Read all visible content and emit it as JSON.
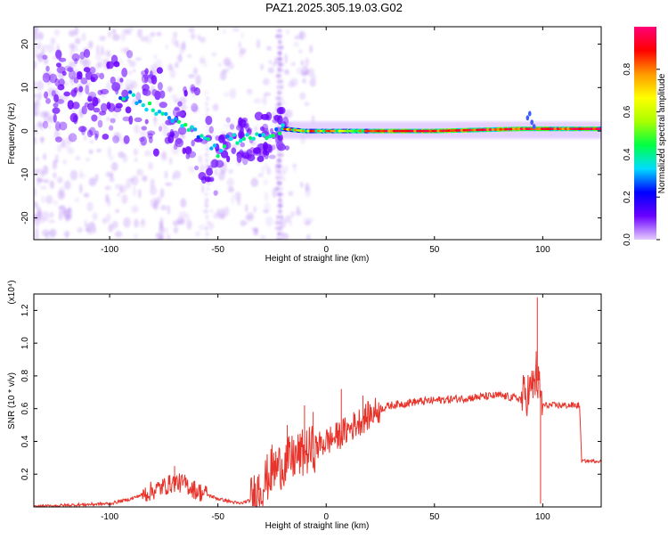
{
  "page": {
    "title": "PAZ1.2025.305.19.03.G02"
  },
  "chart_data": [
    {
      "type": "heatmap",
      "id": "spectrogram",
      "xlabel": "Height of straight line (km)",
      "ylabel": "Frequency (Hz)",
      "xlim": [
        -135,
        127
      ],
      "ylim": [
        -25,
        24
      ],
      "xticks": [
        -100,
        -50,
        0,
        50,
        100
      ],
      "xtick_labels": [
        "-100",
        "-50",
        "0",
        "50",
        "100"
      ],
      "yticks": [
        -20,
        -10,
        0,
        10,
        20
      ],
      "ytick_labels": [
        "-20",
        "-10",
        "0",
        "10",
        "20"
      ],
      "grid": false,
      "ridge": {
        "description": "dominant frequency ridge",
        "x": [
          -100,
          -90,
          -80,
          -70,
          -60,
          -50,
          -45,
          -40,
          -30,
          -25,
          -20,
          -10,
          0,
          20,
          50,
          90,
          95,
          100,
          127
        ],
        "y": [
          8,
          8,
          5,
          3,
          0,
          -5,
          -1.5,
          -2,
          -1.5,
          -1,
          0.5,
          0,
          0,
          0,
          0,
          0.5,
          0.5,
          0.5,
          0.5
        ]
      },
      "colorbar": {
        "label": "Normalized spectral amplitude",
        "ticks": [
          0.0,
          0.2,
          0.4,
          0.6,
          0.8
        ],
        "tick_labels": [
          "0.0",
          "0.2",
          "0.4",
          "0.6",
          "0.8"
        ],
        "range": [
          0,
          1
        ],
        "colors": [
          "#e6ccff",
          "#6a00ff",
          "#0000ff",
          "#00ddff",
          "#00ff44",
          "#aaff00",
          "#ffff00",
          "#ff9900",
          "#ff0000",
          "#ff0077"
        ]
      }
    },
    {
      "type": "line",
      "id": "snr",
      "xlabel": "Height of straight line (km)",
      "ylabel": "SNR (10 * v/v)",
      "y_multiplier_label": "(x10⁴)",
      "xlim": [
        -135,
        127
      ],
      "ylim": [
        0,
        1.3
      ],
      "xticks": [
        -100,
        -50,
        0,
        50,
        100
      ],
      "xtick_labels": [
        "-100",
        "-50",
        "0",
        "50",
        "100"
      ],
      "yticks": [
        0.2,
        0.4,
        0.6,
        0.8,
        1.0,
        1.2
      ],
      "ytick_labels": [
        "0.2",
        "0.4",
        "0.6",
        "0.8",
        "1.0",
        "1.2"
      ],
      "color": "#e8332a",
      "series": [
        {
          "name": "SNR",
          "x": [
            -135,
            -120,
            -100,
            -90,
            -80,
            -70,
            -65,
            -60,
            -50,
            -40,
            -35,
            -30,
            -25,
            -20,
            -15,
            -10,
            -5,
            0,
            5,
            10,
            15,
            20,
            25,
            30,
            40,
            50,
            60,
            70,
            80,
            85,
            90,
            95,
            97,
            100,
            105,
            110,
            117,
            118,
            127
          ],
          "y": [
            0.0,
            0.01,
            0.02,
            0.05,
            0.1,
            0.15,
            0.14,
            0.1,
            0.05,
            0.02,
            0.04,
            0.12,
            0.22,
            0.26,
            0.3,
            0.33,
            0.36,
            0.4,
            0.43,
            0.47,
            0.52,
            0.56,
            0.6,
            0.62,
            0.64,
            0.65,
            0.66,
            0.67,
            0.68,
            0.67,
            0.66,
            0.72,
            0.8,
            0.62,
            0.62,
            0.62,
            0.62,
            0.28,
            0.28
          ]
        }
      ],
      "spikes": {
        "x": [
          -70,
          -31,
          -25,
          -18,
          -10,
          -6,
          7,
          17,
          95,
          97,
          97.5,
          99
        ],
        "y": [
          0.25,
          0.2,
          0.38,
          0.5,
          0.62,
          0.58,
          0.72,
          0.68,
          0.8,
          0.95,
          1.28,
          0.02
        ]
      }
    }
  ]
}
